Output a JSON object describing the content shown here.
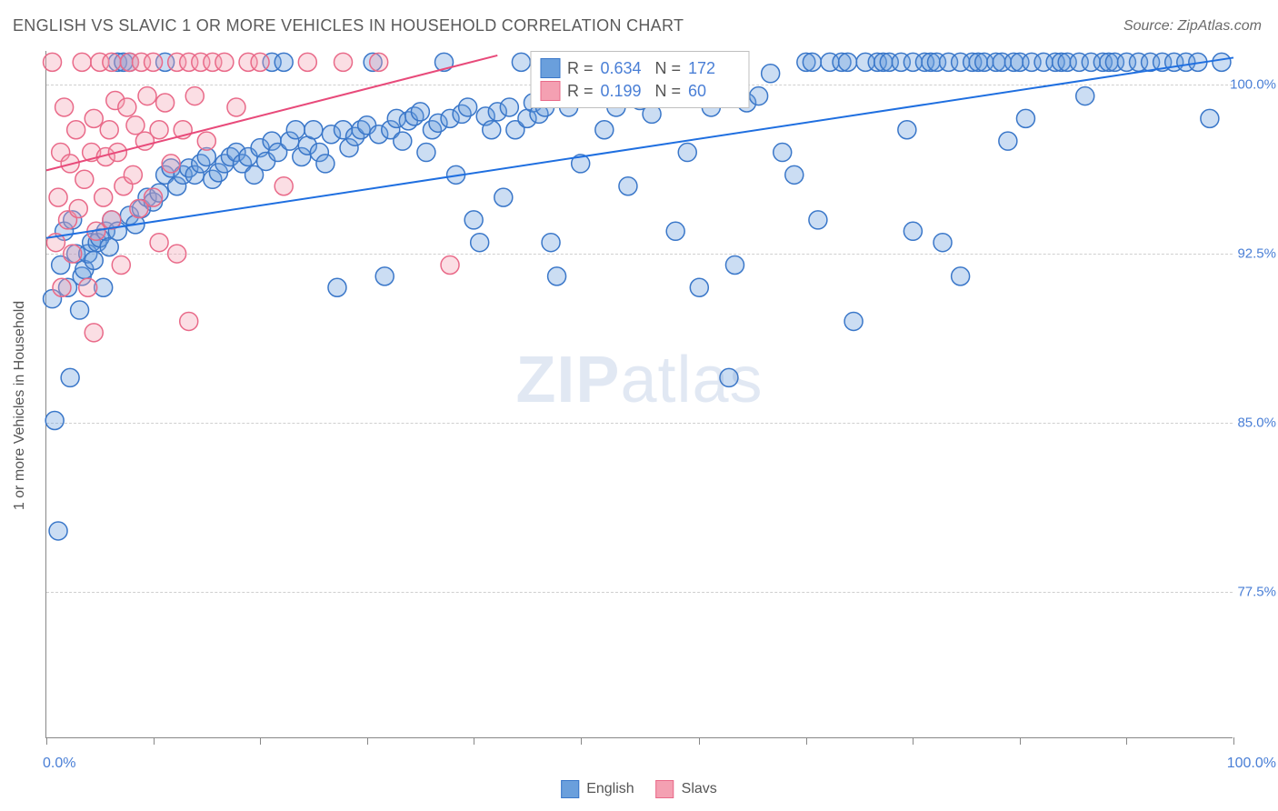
{
  "title": "ENGLISH VS SLAVIC 1 OR MORE VEHICLES IN HOUSEHOLD CORRELATION CHART",
  "source": "Source: ZipAtlas.com",
  "watermark_zip": "ZIP",
  "watermark_atlas": "atlas",
  "y_axis_title": "1 or more Vehicles in Household",
  "chart": {
    "type": "scatter",
    "background_color": "#ffffff",
    "grid_color": "#cfcfcf",
    "axis_color": "#888888",
    "marker_radius": 10,
    "marker_stroke_width": 1.5,
    "marker_fill_opacity": 0.35,
    "xlim": [
      0,
      100
    ],
    "ylim": [
      71,
      101.5
    ],
    "xticks": [
      0,
      9,
      18,
      27,
      36,
      45,
      55,
      64,
      73,
      82,
      91,
      100
    ],
    "yticks": [
      77.5,
      85.0,
      92.5,
      100.0
    ],
    "ytick_labels": [
      "77.5%",
      "85.0%",
      "92.5%",
      "100.0%"
    ],
    "x_start_label": "0.0%",
    "x_end_label": "100.0%",
    "series": [
      {
        "name": "English",
        "color": "#6a9fdc",
        "stroke": "#3a77c9",
        "R": "0.634",
        "N": "172",
        "trend": {
          "x1": 0,
          "y1": 93.2,
          "x2": 100,
          "y2": 101.2,
          "stroke": "#1f6fe0",
          "width": 2
        },
        "points": [
          [
            0.5,
            90.5
          ],
          [
            0.7,
            85.1
          ],
          [
            1.0,
            80.2
          ],
          [
            1.2,
            92.0
          ],
          [
            1.5,
            93.5
          ],
          [
            1.8,
            91.0
          ],
          [
            2.0,
            87.0
          ],
          [
            2.2,
            94.0
          ],
          [
            2.5,
            92.5
          ],
          [
            2.8,
            90.0
          ],
          [
            3.0,
            91.5
          ],
          [
            3.2,
            91.8
          ],
          [
            3.5,
            92.5
          ],
          [
            3.8,
            93.0
          ],
          [
            4.0,
            92.2
          ],
          [
            4.3,
            93.0
          ],
          [
            4.5,
            93.2
          ],
          [
            4.8,
            91.0
          ],
          [
            5.0,
            93.5
          ],
          [
            5.3,
            92.8
          ],
          [
            5.5,
            94.0
          ],
          [
            6.0,
            93.5
          ],
          [
            6.0,
            101.0
          ],
          [
            6.5,
            101.0
          ],
          [
            7.0,
            101.0
          ],
          [
            7.0,
            94.2
          ],
          [
            7.5,
            93.8
          ],
          [
            8.0,
            94.5
          ],
          [
            8.5,
            95.0
          ],
          [
            9.0,
            94.8
          ],
          [
            9.5,
            95.2
          ],
          [
            10.0,
            96.0
          ],
          [
            10.0,
            101.0
          ],
          [
            10.5,
            96.3
          ],
          [
            11.0,
            95.5
          ],
          [
            11.5,
            96.0
          ],
          [
            12.0,
            96.3
          ],
          [
            12.5,
            96.0
          ],
          [
            13.0,
            96.5
          ],
          [
            13.5,
            96.8
          ],
          [
            14.0,
            95.8
          ],
          [
            14.5,
            96.1
          ],
          [
            15.0,
            96.5
          ],
          [
            15.5,
            96.8
          ],
          [
            16.0,
            97.0
          ],
          [
            16.5,
            96.5
          ],
          [
            17.0,
            96.8
          ],
          [
            17.5,
            96.0
          ],
          [
            18.0,
            97.2
          ],
          [
            18.5,
            96.6
          ],
          [
            19.0,
            97.5
          ],
          [
            19.0,
            101.0
          ],
          [
            19.5,
            97.0
          ],
          [
            20.0,
            101.0
          ],
          [
            20.5,
            97.5
          ],
          [
            21.0,
            98.0
          ],
          [
            21.5,
            96.8
          ],
          [
            22.0,
            97.3
          ],
          [
            22.5,
            98.0
          ],
          [
            23.0,
            97.0
          ],
          [
            23.5,
            96.5
          ],
          [
            24.0,
            97.8
          ],
          [
            24.5,
            91.0
          ],
          [
            25.0,
            98.0
          ],
          [
            25.5,
            97.2
          ],
          [
            26.0,
            97.7
          ],
          [
            26.5,
            98.0
          ],
          [
            27.0,
            98.2
          ],
          [
            27.5,
            101.0
          ],
          [
            28.0,
            97.8
          ],
          [
            28.5,
            91.5
          ],
          [
            29.0,
            98.0
          ],
          [
            29.5,
            98.5
          ],
          [
            30.0,
            97.5
          ],
          [
            30.5,
            98.4
          ],
          [
            31.0,
            98.6
          ],
          [
            31.5,
            98.8
          ],
          [
            32.0,
            97.0
          ],
          [
            32.5,
            98.0
          ],
          [
            33.0,
            98.3
          ],
          [
            33.5,
            101.0
          ],
          [
            34.0,
            98.5
          ],
          [
            34.5,
            96.0
          ],
          [
            35.0,
            98.7
          ],
          [
            35.5,
            99.0
          ],
          [
            36.0,
            94.0
          ],
          [
            36.5,
            93.0
          ],
          [
            37.0,
            98.6
          ],
          [
            37.5,
            98.0
          ],
          [
            38.0,
            98.8
          ],
          [
            38.5,
            95.0
          ],
          [
            39.0,
            99.0
          ],
          [
            39.5,
            98.0
          ],
          [
            40.0,
            101.0
          ],
          [
            40.5,
            98.5
          ],
          [
            41.0,
            99.2
          ],
          [
            41.5,
            98.7
          ],
          [
            42.0,
            99.0
          ],
          [
            42.5,
            93.0
          ],
          [
            43.0,
            91.5
          ],
          [
            44.0,
            99.0
          ],
          [
            45.0,
            96.5
          ],
          [
            46.0,
            99.5
          ],
          [
            47.0,
            98.0
          ],
          [
            48.0,
            99.0
          ],
          [
            49.0,
            95.5
          ],
          [
            50.0,
            99.3
          ],
          [
            51.0,
            98.7
          ],
          [
            52.0,
            99.5
          ],
          [
            53.0,
            93.5
          ],
          [
            54.0,
            97.0
          ],
          [
            55.0,
            91.0
          ],
          [
            56.0,
            99.0
          ],
          [
            57.0,
            99.5
          ],
          [
            57.5,
            87.0
          ],
          [
            58.0,
            92.0
          ],
          [
            59.0,
            99.2
          ],
          [
            60.0,
            99.5
          ],
          [
            61.0,
            100.5
          ],
          [
            62.0,
            97.0
          ],
          [
            63.0,
            96.0
          ],
          [
            64.0,
            101.0
          ],
          [
            64.5,
            101.0
          ],
          [
            65.0,
            94.0
          ],
          [
            66.0,
            101.0
          ],
          [
            67.0,
            101.0
          ],
          [
            67.5,
            101.0
          ],
          [
            68.0,
            89.5
          ],
          [
            69.0,
            101.0
          ],
          [
            70.0,
            101.0
          ],
          [
            70.5,
            101.0
          ],
          [
            71.0,
            101.0
          ],
          [
            72.0,
            101.0
          ],
          [
            72.5,
            98.0
          ],
          [
            73.0,
            101.0
          ],
          [
            73.0,
            93.5
          ],
          [
            74.0,
            101.0
          ],
          [
            74.5,
            101.0
          ],
          [
            75.0,
            101.0
          ],
          [
            75.5,
            93.0
          ],
          [
            76.0,
            101.0
          ],
          [
            77.0,
            101.0
          ],
          [
            77.0,
            91.5
          ],
          [
            78.0,
            101.0
          ],
          [
            78.5,
            101.0
          ],
          [
            79.0,
            101.0
          ],
          [
            80.0,
            101.0
          ],
          [
            80.5,
            101.0
          ],
          [
            81.0,
            97.5
          ],
          [
            81.5,
            101.0
          ],
          [
            82.0,
            101.0
          ],
          [
            82.5,
            98.5
          ],
          [
            83.0,
            101.0
          ],
          [
            84.0,
            101.0
          ],
          [
            85.0,
            101.0
          ],
          [
            85.5,
            101.0
          ],
          [
            86.0,
            101.0
          ],
          [
            87.0,
            101.0
          ],
          [
            87.5,
            99.5
          ],
          [
            88.0,
            101.0
          ],
          [
            89.0,
            101.0
          ],
          [
            89.5,
            101.0
          ],
          [
            90.0,
            101.0
          ],
          [
            91.0,
            101.0
          ],
          [
            92.0,
            101.0
          ],
          [
            93.0,
            101.0
          ],
          [
            94.0,
            101.0
          ],
          [
            95.0,
            101.0
          ],
          [
            96.0,
            101.0
          ],
          [
            97.0,
            101.0
          ],
          [
            98.0,
            98.5
          ],
          [
            99.0,
            101.0
          ]
        ]
      },
      {
        "name": "Slavs",
        "color": "#f4a0b2",
        "stroke": "#e96a89",
        "R": "0.199",
        "N": "60",
        "trend": {
          "x1": 0,
          "y1": 96.2,
          "x2": 38,
          "y2": 101.3,
          "stroke": "#e84a7a",
          "width": 2
        },
        "points": [
          [
            0.5,
            101.0
          ],
          [
            0.8,
            93.0
          ],
          [
            1.0,
            95.0
          ],
          [
            1.2,
            97.0
          ],
          [
            1.3,
            91.0
          ],
          [
            1.5,
            99.0
          ],
          [
            1.8,
            94.0
          ],
          [
            2.0,
            96.5
          ],
          [
            2.2,
            92.5
          ],
          [
            2.5,
            98.0
          ],
          [
            2.7,
            94.5
          ],
          [
            3.0,
            101.0
          ],
          [
            3.2,
            95.8
          ],
          [
            3.5,
            91.0
          ],
          [
            3.8,
            97.0
          ],
          [
            4.0,
            98.5
          ],
          [
            4.0,
            89.0
          ],
          [
            4.2,
            93.5
          ],
          [
            4.5,
            101.0
          ],
          [
            4.8,
            95.0
          ],
          [
            5.0,
            96.8
          ],
          [
            5.3,
            98.0
          ],
          [
            5.5,
            94.0
          ],
          [
            5.5,
            101.0
          ],
          [
            5.8,
            99.3
          ],
          [
            6.0,
            97.0
          ],
          [
            6.3,
            92.0
          ],
          [
            6.5,
            95.5
          ],
          [
            6.8,
            99.0
          ],
          [
            7.0,
            101.0
          ],
          [
            7.3,
            96.0
          ],
          [
            7.5,
            98.2
          ],
          [
            7.8,
            94.5
          ],
          [
            8.0,
            101.0
          ],
          [
            8.3,
            97.5
          ],
          [
            8.5,
            99.5
          ],
          [
            9.0,
            95.0
          ],
          [
            9.0,
            101.0
          ],
          [
            9.5,
            98.0
          ],
          [
            9.5,
            93.0
          ],
          [
            10.0,
            99.2
          ],
          [
            10.5,
            96.5
          ],
          [
            11.0,
            101.0
          ],
          [
            11.0,
            92.5
          ],
          [
            11.5,
            98.0
          ],
          [
            12.0,
            89.5
          ],
          [
            12.0,
            101.0
          ],
          [
            12.5,
            99.5
          ],
          [
            13.0,
            101.0
          ],
          [
            13.5,
            97.5
          ],
          [
            14.0,
            101.0
          ],
          [
            15.0,
            101.0
          ],
          [
            16.0,
            99.0
          ],
          [
            17.0,
            101.0
          ],
          [
            18.0,
            101.0
          ],
          [
            20.0,
            95.5
          ],
          [
            22.0,
            101.0
          ],
          [
            25.0,
            101.0
          ],
          [
            28.0,
            101.0
          ],
          [
            34.0,
            92.0
          ]
        ]
      }
    ],
    "legend_labels": {
      "english": "English",
      "slavs": "Slavs",
      "R_label": "R =",
      "N_label": "N ="
    }
  }
}
